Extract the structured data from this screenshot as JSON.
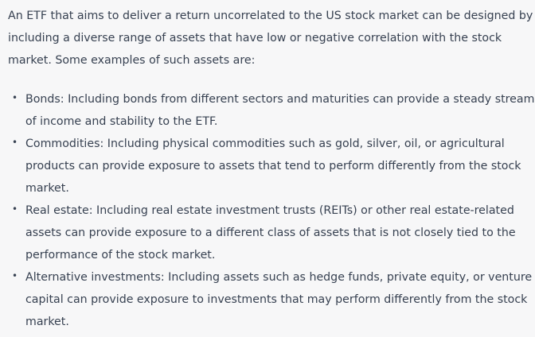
{
  "intro_lines": [
    "An ETF that aims to deliver a return uncorrelated to the US stock market can be designed by",
    "including a diverse range of assets that have low or negative correlation with the stock",
    "market. Some examples of such assets are:"
  ],
  "items": [
    {
      "lines": [
        "Bonds: Including bonds from different sectors and maturities can provide a steady stream",
        "of income and stability to the ETF."
      ]
    },
    {
      "lines": [
        "Commodities: Including physical commodities such as gold, silver, oil, or agricultural",
        "products can provide exposure to assets that tend to perform differently from the stock",
        "market."
      ]
    },
    {
      "lines": [
        "Real estate: Including real estate investment trusts (REITs) or other real estate-related",
        "assets can provide exposure to a different class of assets that is not closely tied to the",
        "performance of the stock market."
      ]
    },
    {
      "lines": [
        "Alternative investments: Including assets such as hedge funds, private equity, or venture",
        "capital can provide exposure to investments that may perform differently from the stock",
        "market."
      ]
    }
  ]
}
